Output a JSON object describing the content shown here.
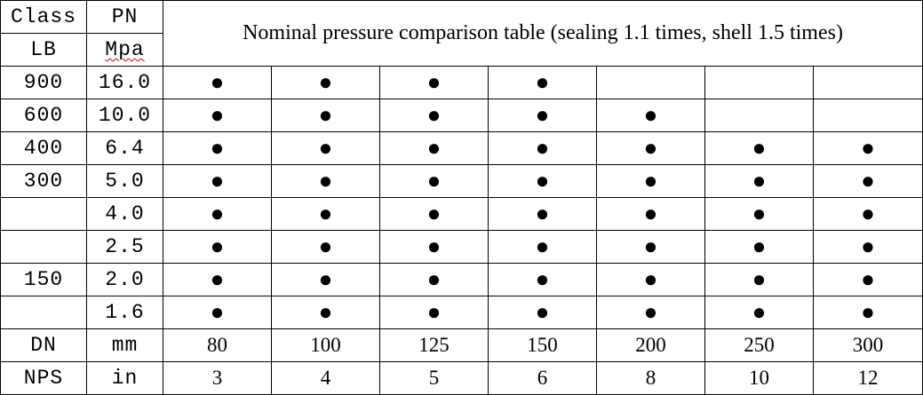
{
  "table": {
    "header": {
      "class": "Class",
      "pn": "PN",
      "lb": "LB",
      "mpa": "Mpa",
      "title": "Nominal pressure comparison table (sealing 1.1 times, shell 1.5 times)"
    },
    "rows": [
      [
        "900",
        "16.0",
        "●",
        "●",
        "●",
        "●",
        null,
        null,
        null
      ],
      [
        "600",
        "10.0",
        "●",
        "●",
        "●",
        "●",
        "●",
        null,
        null
      ],
      [
        "400",
        "6.4",
        "●",
        "●",
        "●",
        "●",
        "●",
        "●",
        "●"
      ],
      [
        "300",
        "5.0",
        "●",
        "●",
        "●",
        "●",
        "●",
        "●",
        "●"
      ],
      [
        null,
        "4.0",
        "●",
        "●",
        "●",
        "●",
        "●",
        "●",
        "●"
      ],
      [
        null,
        "2.5",
        "●",
        "●",
        "●",
        "●",
        "●",
        "●",
        "●"
      ],
      [
        "150",
        "2.0",
        "●",
        "●",
        "●",
        "●",
        "●",
        "●",
        "●"
      ],
      [
        null,
        "1.6",
        "●",
        "●",
        "●",
        "●",
        "●",
        "●",
        "●"
      ],
      [
        "DN",
        "mm",
        "80",
        "100",
        "125",
        "150",
        "200",
        "250",
        "300"
      ],
      [
        "NPS",
        "in",
        "3",
        "4",
        "5",
        "6",
        "8",
        "10",
        "12"
      ]
    ]
  }
}
